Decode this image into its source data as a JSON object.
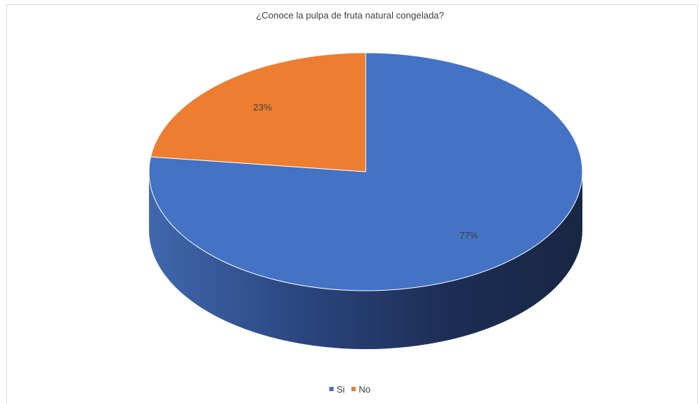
{
  "chart_data": {
    "type": "pie",
    "title": "¿Conoce la pulpa de fruta natural congelada?",
    "categories": [
      "Si",
      "No"
    ],
    "values": [
      77,
      23
    ],
    "labels": [
      "77%",
      "23%"
    ],
    "colors": [
      "#4472C4",
      "#ED7D31"
    ],
    "legend_position": "bottom",
    "style": "3d"
  }
}
